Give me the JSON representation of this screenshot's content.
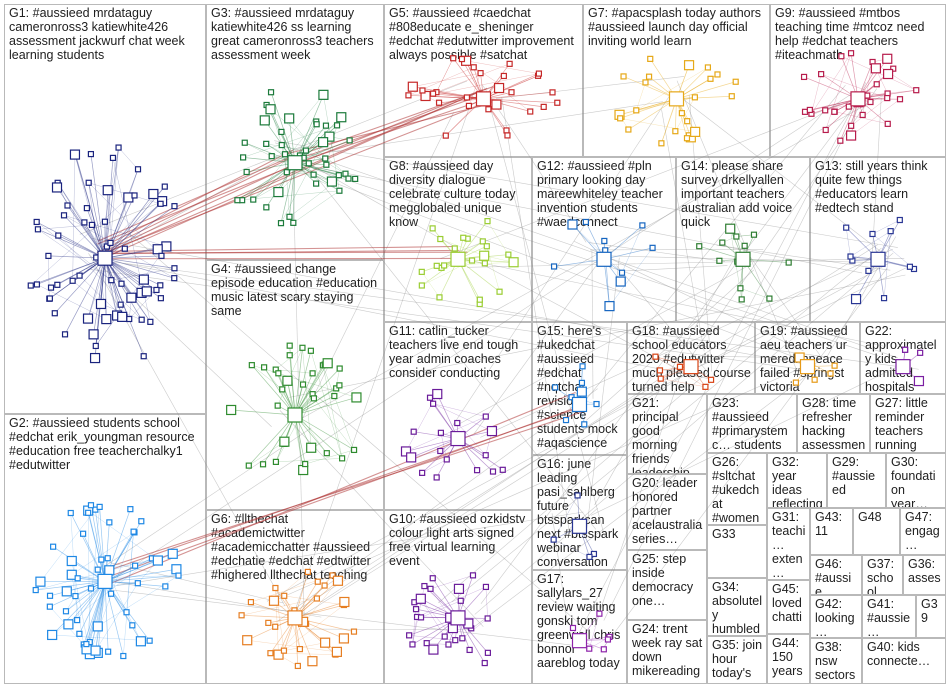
{
  "groups": [
    {
      "id": "G1",
      "label": "G1: #aussieed mrdataguy cameronross3 katiewhite426 assessment jackwurf chat week learning students"
    },
    {
      "id": "G3",
      "label": "G3: #aussieed mrdataguy katiewhite426 ss learning great cameronross3 teachers assessment week"
    },
    {
      "id": "G5",
      "label": "G5: #aussieed #caedchat #808educate e_sheninger #edchat #edutwitter improvement always possible #satchat"
    },
    {
      "id": "G7",
      "label": "G7: #apacsplash today authors #aussieed launch day official inviting world learn"
    },
    {
      "id": "G9",
      "label": "G9: #aussieed #mtbos teaching time #mtcoz need help #edchat teachers #iteachmath"
    },
    {
      "id": "G8",
      "label": "G8: #aussieed day diversity dialogue celebrate culture today megglobaled unique know"
    },
    {
      "id": "G12",
      "label": "G12: #aussieed #pln primary looking day mareewhiteley teacher invention students #waedconnect"
    },
    {
      "id": "G14",
      "label": "G14: please share survey drkellyallen important teachers australian add voice quick"
    },
    {
      "id": "G13",
      "label": "G13: still years think quite few things #educators learn #edtech stand"
    },
    {
      "id": "G4",
      "label": "G4: #aussieed change episode education #education music latest scary staying same"
    },
    {
      "id": "G11",
      "label": "G11: catlin_tucker teachers live end tough year admin coaches consider conducting"
    },
    {
      "id": "G15",
      "label": "G15: here's #ukedchat #aussieed #edchat #nqtchat revision #science students mock #aqascience"
    },
    {
      "id": "G18",
      "label": "G18: #aussieed school educators 2020 #edutwitter much pleased course turned help"
    },
    {
      "id": "G19",
      "label": "G19: #aussieed aeu teachers ur meredithpeace failed #springst victoria"
    },
    {
      "id": "G22",
      "label": "G22: approximately kids admitted hospitals farm related…"
    },
    {
      "id": "G2",
      "label": "G2: #aussieed students school #edchat erik_youngman resource #education free teacherchalky1 #edutwitter"
    },
    {
      "id": "G21",
      "label": "G21: principal good morning friends leadership lab back another…"
    },
    {
      "id": "G23",
      "label": "G23: #aussieed #primarystemc… students organise…"
    },
    {
      "id": "G28",
      "label": "G28: time refresher hacking assessment…"
    },
    {
      "id": "G27",
      "label": "G27: little reminder teachers running pd…"
    },
    {
      "id": "G16",
      "label": "G16: june leading pasi_sahlberg future btssparkcan next #btsspark webinar conversation #educationallea…"
    },
    {
      "id": "G26",
      "label": "G26: #sltchat #ukedchat #womened #aussie…"
    },
    {
      "id": "G32",
      "label": "G32: year ideas reflecting…"
    },
    {
      "id": "G29",
      "label": "G29: #aussieed"
    },
    {
      "id": "G30",
      "label": "G30: foundation year…"
    },
    {
      "id": "G20",
      "label": "G20: leader honored partner acelaustralia series…"
    },
    {
      "id": "G31",
      "label": "G31: teachi… exten… respect teach…"
    },
    {
      "id": "G43",
      "label": "G43: 11"
    },
    {
      "id": "G48",
      "label": "G48"
    },
    {
      "id": "G47",
      "label": "G47: engag…"
    },
    {
      "id": "G6",
      "label": "G6: #llthechat #academictwitter #academicchatter #aussieed #edchatie #edchat #edtwitter #highered llthechat teaching"
    },
    {
      "id": "G10",
      "label": "G10: #aussieed ozkidstv colour light arts signed free virtual learning event"
    },
    {
      "id": "G33",
      "label": "G33"
    },
    {
      "id": "G25",
      "label": "G25: step inside democracy one…"
    },
    {
      "id": "G46",
      "label": "G46: #aussie…"
    },
    {
      "id": "G37",
      "label": "G37: school readin…"
    },
    {
      "id": "G36",
      "label": "G36: asses… ongoi…"
    },
    {
      "id": "G34",
      "label": "G34: absolutely humbled…"
    },
    {
      "id": "G45",
      "label": "G45: loved chatti…"
    },
    {
      "id": "G17",
      "label": "G17: sallylars_27 review waiting gonski tom greenwell chris bonnor aareblog today"
    },
    {
      "id": "G42",
      "label": "G42: looking…"
    },
    {
      "id": "G41",
      "label": "G41: #aussie…"
    },
    {
      "id": "G39",
      "label": "G39"
    },
    {
      "id": "G24",
      "label": "G24: trent week ray sat down mikereading…"
    },
    {
      "id": "G44",
      "label": "G44: 150 years…"
    },
    {
      "id": "G35",
      "label": "G35: join hour today's…"
    },
    {
      "id": "G38",
      "label": "G38: nsw sectors…"
    },
    {
      "id": "G40",
      "label": "G40: kids connecte…"
    }
  ]
}
